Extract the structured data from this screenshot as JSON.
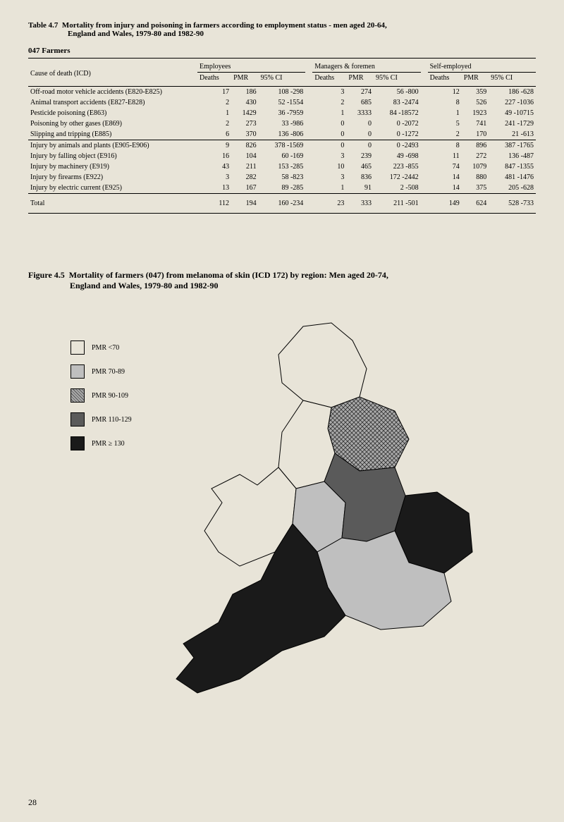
{
  "page_number": "28",
  "table": {
    "label_prefix": "Table 4.7",
    "title": "Mortality from injury and poisoning in farmers according to employment status - men aged 20-64,",
    "subtitle": "England and Wales, 1979-80 and 1982-90",
    "occupation_code": "047  Farmers",
    "header": {
      "cause": "Cause of death (ICD)",
      "groups": [
        "Employees",
        "Managers & foremen",
        "Self-employed"
      ],
      "subcols": [
        "Deaths",
        "PMR",
        "95% CI"
      ]
    },
    "sections": [
      {
        "rows": [
          {
            "cause": "Off-road motor vehicle accidents (E820-E825)",
            "emp": [
              "17",
              "186",
              "108 -298"
            ],
            "mgr": [
              "3",
              "274",
              "56 -800"
            ],
            "self": [
              "12",
              "359",
              "186 -628"
            ]
          },
          {
            "cause": "Animal transport accidents (E827-E828)",
            "emp": [
              "2",
              "430",
              "52 -1554"
            ],
            "mgr": [
              "2",
              "685",
              "83 -2474"
            ],
            "self": [
              "8",
              "526",
              "227 -1036"
            ]
          },
          {
            "cause": "Pesticide poisoning (E863)",
            "emp": [
              "1",
              "1429",
              "36 -7959"
            ],
            "mgr": [
              "1",
              "3333",
              "84 -18572"
            ],
            "self": [
              "1",
              "1923",
              "49 -10715"
            ]
          },
          {
            "cause": "Poisoning by other gases (E869)",
            "emp": [
              "2",
              "273",
              "33 -986"
            ],
            "mgr": [
              "0",
              "0",
              "0 -2072"
            ],
            "self": [
              "5",
              "741",
              "241 -1729"
            ]
          },
          {
            "cause": "Slipping and tripping (E885)",
            "emp": [
              "6",
              "370",
              "136 -806"
            ],
            "mgr": [
              "0",
              "0",
              "0 -1272"
            ],
            "self": [
              "2",
              "170",
              "21 -613"
            ]
          }
        ]
      },
      {
        "rows": [
          {
            "cause": "Injury by animals and plants (E905-E906)",
            "emp": [
              "9",
              "826",
              "378 -1569"
            ],
            "mgr": [
              "0",
              "0",
              "0 -2493"
            ],
            "self": [
              "8",
              "896",
              "387 -1765"
            ]
          },
          {
            "cause": "Injury by falling object (E916)",
            "emp": [
              "16",
              "104",
              "60 -169"
            ],
            "mgr": [
              "3",
              "239",
              "49 -698"
            ],
            "self": [
              "11",
              "272",
              "136 -487"
            ]
          },
          {
            "cause": "Injury by machinery (E919)",
            "emp": [
              "43",
              "211",
              "153 -285"
            ],
            "mgr": [
              "10",
              "465",
              "223 -855"
            ],
            "self": [
              "74",
              "1079",
              "847 -1355"
            ]
          },
          {
            "cause": "Injury by firearms (E922)",
            "emp": [
              "3",
              "282",
              "58 -823"
            ],
            "mgr": [
              "3",
              "836",
              "172 -2442"
            ],
            "self": [
              "14",
              "880",
              "481 -1476"
            ]
          },
          {
            "cause": "Injury by electric current (E925)",
            "emp": [
              "13",
              "167",
              "89 -285"
            ],
            "mgr": [
              "1",
              "91",
              "2 -508"
            ],
            "self": [
              "14",
              "375",
              "205 -628"
            ]
          }
        ]
      }
    ],
    "total": {
      "cause": "Total",
      "emp": [
        "112",
        "194",
        "160 -234"
      ],
      "mgr": [
        "23",
        "333",
        "211 -501"
      ],
      "self": [
        "149",
        "624",
        "528 -733"
      ]
    }
  },
  "figure": {
    "label_prefix": "Figure 4.5",
    "title": "Mortality of farmers (047) from melanoma of skin (ICD 172) by region: Men aged 20-74,",
    "subtitle": "England and Wales, 1979-80 and 1982-90",
    "legend": [
      {
        "label": "PMR <70",
        "fill": "#e8e4d8",
        "pattern": "none"
      },
      {
        "label": "PMR 70-89",
        "fill": "#bfbfbf",
        "pattern": "none"
      },
      {
        "label": "PMR 90-109",
        "fill": "#888888",
        "pattern": "crosshatch"
      },
      {
        "label": "PMR 110-129",
        "fill": "#5a5a5a",
        "pattern": "none"
      },
      {
        "label": "PMR ≥ 130",
        "fill": "#1a1a1a",
        "pattern": "none"
      }
    ],
    "map": {
      "type": "choropleth",
      "background_color": "#e8e4d8",
      "border_color": "#000000",
      "regions": [
        {
          "name": "North",
          "fill": "#e8e4d8"
        },
        {
          "name": "Yorkshire & Humberside",
          "fill": "#888888",
          "pattern": "crosshatch"
        },
        {
          "name": "North West",
          "fill": "#e8e4d8"
        },
        {
          "name": "Wales",
          "fill": "#e8e4d8"
        },
        {
          "name": "West Midlands",
          "fill": "#bfbfbf"
        },
        {
          "name": "East Midlands",
          "fill": "#5a5a5a"
        },
        {
          "name": "East Anglia",
          "fill": "#1a1a1a"
        },
        {
          "name": "South East",
          "fill": "#bfbfbf"
        },
        {
          "name": "South West",
          "fill": "#1a1a1a"
        }
      ]
    }
  }
}
